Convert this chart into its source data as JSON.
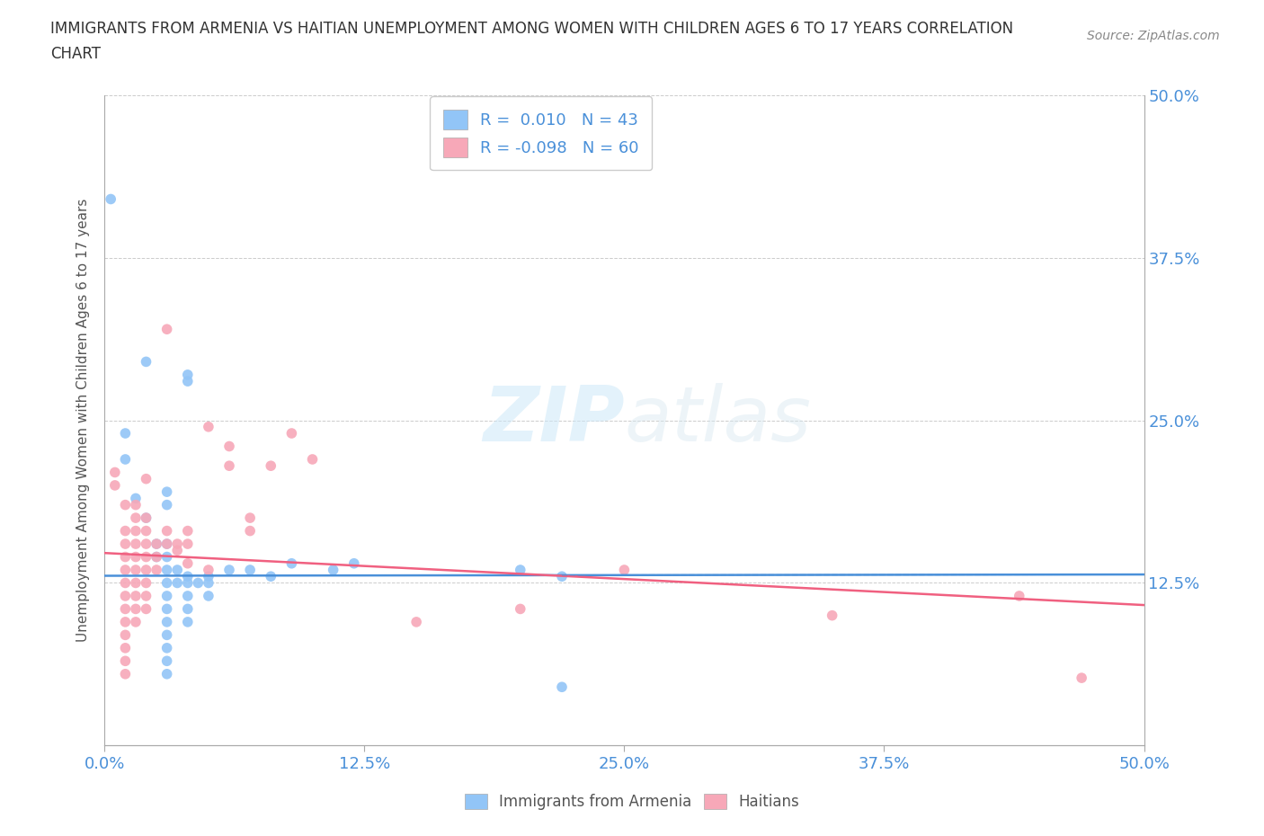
{
  "title_line1": "IMMIGRANTS FROM ARMENIA VS HAITIAN UNEMPLOYMENT AMONG WOMEN WITH CHILDREN AGES 6 TO 17 YEARS CORRELATION",
  "title_line2": "CHART",
  "source_text": "Source: ZipAtlas.com",
  "ylabel": "Unemployment Among Women with Children Ages 6 to 17 years",
  "xlim": [
    0.0,
    0.5
  ],
  "ylim": [
    0.0,
    0.5
  ],
  "xtick_labels": [
    "0.0%",
    "12.5%",
    "25.0%",
    "37.5%",
    "50.0%"
  ],
  "xtick_vals": [
    0.0,
    0.125,
    0.25,
    0.375,
    0.5
  ],
  "ytick_labels": [
    "12.5%",
    "25.0%",
    "37.5%",
    "50.0%"
  ],
  "ytick_vals": [
    0.125,
    0.25,
    0.375,
    0.5
  ],
  "watermark_zip": "ZIP",
  "watermark_atlas": "atlas",
  "armenia_color": "#92c5f7",
  "haiti_color": "#f7a8b8",
  "armenia_line_color": "#4a90d9",
  "haiti_line_color": "#f06080",
  "armenia_R": 0.01,
  "armenia_N": 43,
  "haiti_R": -0.098,
  "haiti_N": 60,
  "armenia_trend": [
    0.1305,
    0.1315
  ],
  "haiti_trend": [
    0.148,
    0.108
  ],
  "armenia_scatter": [
    [
      0.003,
      0.42
    ],
    [
      0.01,
      0.24
    ],
    [
      0.01,
      0.22
    ],
    [
      0.015,
      0.19
    ],
    [
      0.02,
      0.295
    ],
    [
      0.02,
      0.175
    ],
    [
      0.025,
      0.155
    ],
    [
      0.025,
      0.145
    ],
    [
      0.03,
      0.195
    ],
    [
      0.03,
      0.185
    ],
    [
      0.03,
      0.155
    ],
    [
      0.03,
      0.145
    ],
    [
      0.03,
      0.135
    ],
    [
      0.03,
      0.125
    ],
    [
      0.03,
      0.115
    ],
    [
      0.03,
      0.105
    ],
    [
      0.03,
      0.095
    ],
    [
      0.03,
      0.085
    ],
    [
      0.03,
      0.075
    ],
    [
      0.03,
      0.065
    ],
    [
      0.03,
      0.055
    ],
    [
      0.035,
      0.135
    ],
    [
      0.035,
      0.125
    ],
    [
      0.04,
      0.285
    ],
    [
      0.04,
      0.28
    ],
    [
      0.04,
      0.13
    ],
    [
      0.04,
      0.125
    ],
    [
      0.04,
      0.115
    ],
    [
      0.04,
      0.105
    ],
    [
      0.04,
      0.095
    ],
    [
      0.045,
      0.125
    ],
    [
      0.05,
      0.13
    ],
    [
      0.05,
      0.125
    ],
    [
      0.05,
      0.115
    ],
    [
      0.06,
      0.135
    ],
    [
      0.07,
      0.135
    ],
    [
      0.08,
      0.13
    ],
    [
      0.09,
      0.14
    ],
    [
      0.11,
      0.135
    ],
    [
      0.12,
      0.14
    ],
    [
      0.2,
      0.135
    ],
    [
      0.22,
      0.13
    ],
    [
      0.22,
      0.045
    ]
  ],
  "haiti_scatter": [
    [
      0.005,
      0.21
    ],
    [
      0.005,
      0.2
    ],
    [
      0.01,
      0.185
    ],
    [
      0.01,
      0.165
    ],
    [
      0.01,
      0.155
    ],
    [
      0.01,
      0.145
    ],
    [
      0.01,
      0.135
    ],
    [
      0.01,
      0.125
    ],
    [
      0.01,
      0.115
    ],
    [
      0.01,
      0.105
    ],
    [
      0.01,
      0.095
    ],
    [
      0.01,
      0.085
    ],
    [
      0.01,
      0.075
    ],
    [
      0.01,
      0.065
    ],
    [
      0.01,
      0.055
    ],
    [
      0.015,
      0.185
    ],
    [
      0.015,
      0.175
    ],
    [
      0.015,
      0.165
    ],
    [
      0.015,
      0.155
    ],
    [
      0.015,
      0.145
    ],
    [
      0.015,
      0.135
    ],
    [
      0.015,
      0.125
    ],
    [
      0.015,
      0.115
    ],
    [
      0.015,
      0.105
    ],
    [
      0.015,
      0.095
    ],
    [
      0.02,
      0.205
    ],
    [
      0.02,
      0.175
    ],
    [
      0.02,
      0.165
    ],
    [
      0.02,
      0.155
    ],
    [
      0.02,
      0.145
    ],
    [
      0.02,
      0.135
    ],
    [
      0.02,
      0.125
    ],
    [
      0.02,
      0.115
    ],
    [
      0.02,
      0.105
    ],
    [
      0.025,
      0.155
    ],
    [
      0.025,
      0.145
    ],
    [
      0.025,
      0.135
    ],
    [
      0.03,
      0.32
    ],
    [
      0.03,
      0.165
    ],
    [
      0.03,
      0.155
    ],
    [
      0.035,
      0.155
    ],
    [
      0.035,
      0.15
    ],
    [
      0.04,
      0.165
    ],
    [
      0.04,
      0.155
    ],
    [
      0.04,
      0.14
    ],
    [
      0.05,
      0.245
    ],
    [
      0.05,
      0.135
    ],
    [
      0.06,
      0.23
    ],
    [
      0.06,
      0.215
    ],
    [
      0.07,
      0.175
    ],
    [
      0.07,
      0.165
    ],
    [
      0.08,
      0.215
    ],
    [
      0.09,
      0.24
    ],
    [
      0.1,
      0.22
    ],
    [
      0.15,
      0.095
    ],
    [
      0.2,
      0.105
    ],
    [
      0.25,
      0.135
    ],
    [
      0.35,
      0.1
    ],
    [
      0.44,
      0.115
    ],
    [
      0.47,
      0.052
    ]
  ],
  "background_color": "#ffffff",
  "grid_color": "#cccccc",
  "title_color": "#333333",
  "axis_label_color": "#555555",
  "tick_label_color": "#4a90d9",
  "legend_label_color": "#4a90d9"
}
